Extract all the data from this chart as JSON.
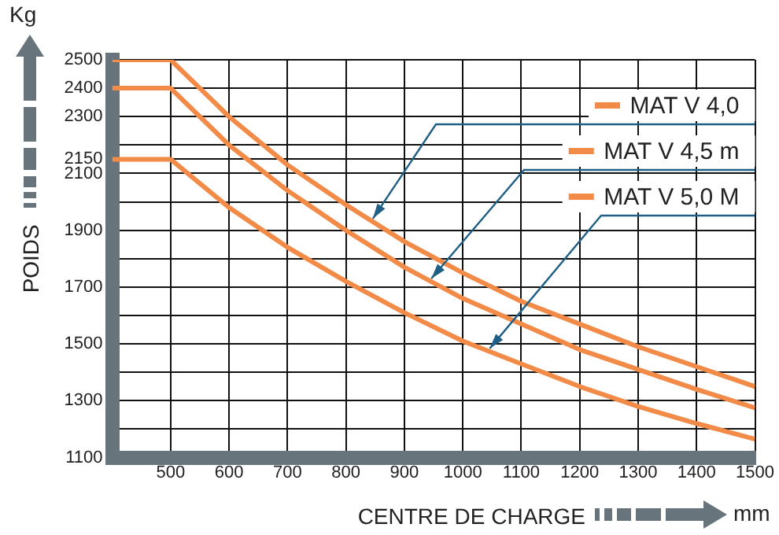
{
  "chart_data": {
    "type": "line",
    "ylabel": "POIDS",
    "xlabel": "CENTRE DE CHARGE",
    "annotations": [
      "Kg",
      "mm"
    ],
    "x": [
      400,
      500,
      600,
      700,
      800,
      900,
      1000,
      1100,
      1200,
      1300,
      1400,
      1500
    ],
    "series": [
      {
        "name": "MAT V 4,0",
        "color": "#f28a48",
        "values": [
          2500,
          2500,
          2300,
          2130,
          1990,
          1860,
          1750,
          1650,
          1570,
          1490,
          1420,
          1350
        ]
      },
      {
        "name": "MAT V 4,5 m",
        "color": "#f28a48",
        "values": [
          2400,
          2400,
          2200,
          2040,
          1900,
          1770,
          1660,
          1570,
          1480,
          1410,
          1340,
          1275
        ]
      },
      {
        "name": "MAT V 5,0 M",
        "color": "#f28a48",
        "values": [
          2150,
          2150,
          1980,
          1840,
          1720,
          1610,
          1510,
          1430,
          1350,
          1280,
          1220,
          1165
        ]
      }
    ],
    "xlim": [
      400,
      1500
    ],
    "xticks": [
      500,
      600,
      700,
      800,
      900,
      1000,
      1100,
      1200,
      1300,
      1400,
      1500
    ],
    "ylim": [
      1100,
      2500
    ],
    "yticks": [
      1100,
      {
        "value": 1200,
        "label": null
      },
      1300,
      {
        "value": 1400,
        "label": null
      },
      1500,
      {
        "value": 1600,
        "label": null
      },
      1700,
      {
        "value": 1800,
        "label": null
      },
      1900,
      {
        "value": 2000,
        "label": null
      },
      2100,
      2150,
      {
        "value": 2200,
        "label": null
      },
      2300,
      2400,
      2500
    ],
    "grid": true,
    "legend": "top right",
    "marker": "none",
    "line_style": "solid"
  }
}
